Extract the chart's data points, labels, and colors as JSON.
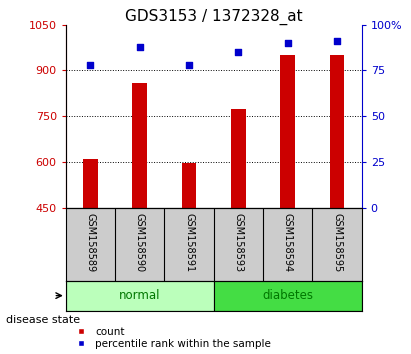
{
  "title": "GDS3153 / 1372328_at",
  "categories": [
    "GSM158589",
    "GSM158590",
    "GSM158591",
    "GSM158593",
    "GSM158594",
    "GSM158595"
  ],
  "bar_values": [
    610,
    860,
    595,
    775,
    950,
    950
  ],
  "bar_bottom": 450,
  "percentile_values": [
    78,
    88,
    78,
    85,
    90,
    91
  ],
  "left_ylim": [
    450,
    1050
  ],
  "right_ylim": [
    0,
    100
  ],
  "left_yticks": [
    450,
    600,
    750,
    900,
    1050
  ],
  "right_yticks": [
    0,
    25,
    50,
    75,
    100
  ],
  "right_yticklabels": [
    "0",
    "25",
    "50",
    "75",
    "100%"
  ],
  "bar_color": "#cc0000",
  "dot_color": "#0000cc",
  "grid_values": [
    600,
    750,
    900
  ],
  "group_labels": [
    "normal",
    "diabetes"
  ],
  "group_ranges": [
    [
      0,
      3
    ],
    [
      3,
      6
    ]
  ],
  "group_colors": [
    "#bbffbb",
    "#44dd44"
  ],
  "group_text_color": "#007700",
  "disease_state_label": "disease state",
  "legend_count_label": "count",
  "legend_pct_label": "percentile rank within the sample",
  "background_color": "#ffffff",
  "xlabel_area_color": "#cccccc",
  "title_fontsize": 11,
  "tick_fontsize": 8,
  "label_fontsize": 8,
  "bar_width": 0.3
}
